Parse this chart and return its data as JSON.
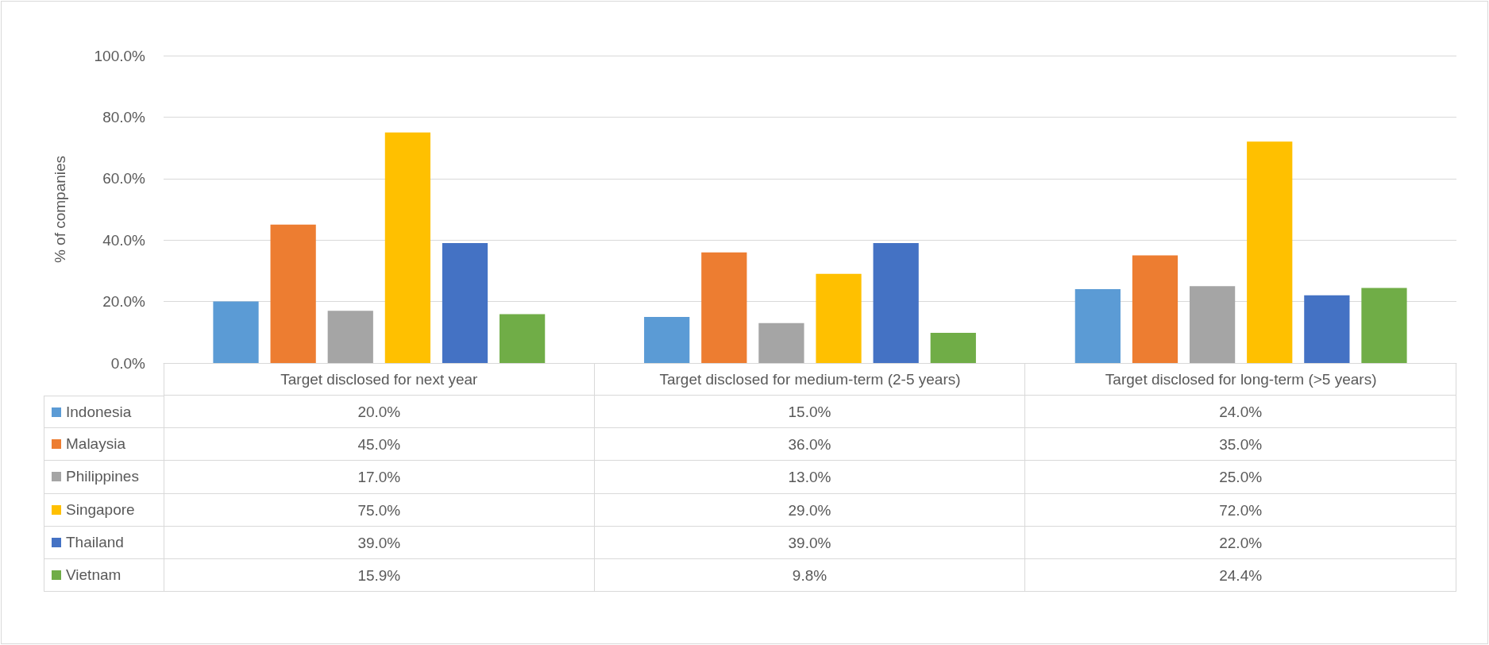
{
  "chart_data": {
    "type": "bar",
    "ylabel": "% of companies",
    "categories": [
      "Target disclosed for next year",
      "Target disclosed for medium-term (2-5 years)",
      "Target disclosed for long-term (>5 years)"
    ],
    "series": [
      {
        "name": "Indonesia",
        "color": "#5b9bd5",
        "values": [
          20.0,
          15.0,
          24.0
        ],
        "value_labels": [
          "20.0%",
          "15.0%",
          "24.0%"
        ]
      },
      {
        "name": "Malaysia",
        "color": "#ed7d31",
        "values": [
          45.0,
          36.0,
          35.0
        ],
        "value_labels": [
          "45.0%",
          "36.0%",
          "35.0%"
        ]
      },
      {
        "name": "Philippines",
        "color": "#a5a5a5",
        "values": [
          17.0,
          13.0,
          25.0
        ],
        "value_labels": [
          "17.0%",
          "13.0%",
          "25.0%"
        ]
      },
      {
        "name": "Singapore",
        "color": "#ffc000",
        "values": [
          75.0,
          29.0,
          72.0
        ],
        "value_labels": [
          "75.0%",
          "29.0%",
          "72.0%"
        ]
      },
      {
        "name": "Thailand",
        "color": "#4472c4",
        "values": [
          39.0,
          39.0,
          22.0
        ],
        "value_labels": [
          "39.0%",
          "39.0%",
          "22.0%"
        ]
      },
      {
        "name": "Vietnam",
        "color": "#70ad47",
        "values": [
          15.9,
          9.8,
          24.4
        ],
        "value_labels": [
          "15.9%",
          "9.8%",
          "24.4%"
        ]
      }
    ],
    "ylim": [
      0,
      100
    ],
    "yticks": [
      {
        "value": 0,
        "label": "0.0%"
      },
      {
        "value": 20,
        "label": "20.0%"
      },
      {
        "value": 40,
        "label": "40.0%"
      },
      {
        "value": 60,
        "label": "60.0%"
      },
      {
        "value": 80,
        "label": "80.0%"
      },
      {
        "value": 100,
        "label": "100.0%"
      }
    ],
    "grid": "y",
    "legend": "bottom"
  }
}
